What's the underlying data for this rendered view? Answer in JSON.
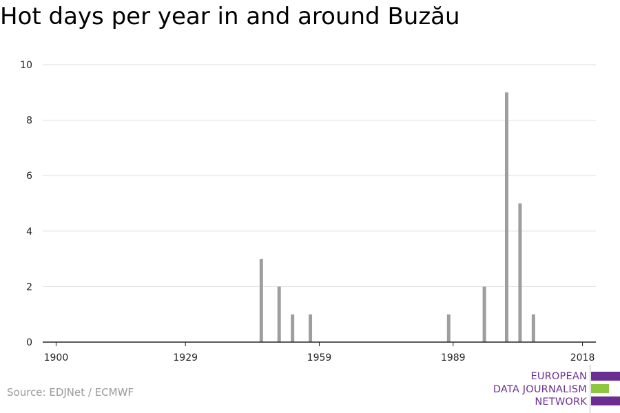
{
  "title": "Hot days per year in and around Buzău",
  "source": "Source: EDJNet / ECMWF",
  "logo": {
    "lines": [
      "EUROPEAN",
      "DATA JOURNALISM",
      "NETWORK"
    ],
    "colors": {
      "purple": "#6a2d91",
      "green": "#8dc63f"
    }
  },
  "chart_data": {
    "type": "bar",
    "title": "Hot days per year in and around Buzău",
    "xlabel": "",
    "ylabel": "",
    "xlim": [
      1897,
      2021
    ],
    "ylim": [
      0,
      10
    ],
    "x_ticks": [
      1900,
      1929,
      1959,
      1989,
      2018
    ],
    "y_ticks": [
      0,
      2,
      4,
      6,
      8,
      10
    ],
    "grid": true,
    "bar_color": "#9e9e9e",
    "series": [
      {
        "x": [
          1922,
          1923,
          1924,
          1925,
          1926,
          1927,
          1928,
          1929,
          1930,
          1931,
          1932,
          1933,
          1934,
          1935,
          1936,
          1937,
          1938,
          1939,
          1940,
          1941,
          1942,
          1943,
          1944,
          1945,
          1946,
          1947,
          1948,
          1949,
          1950,
          1951,
          1952,
          1953,
          1954,
          1955,
          1956,
          1957,
          1958,
          1959,
          1960,
          1961,
          1962,
          1963,
          1964,
          1965,
          1966,
          1967,
          1968,
          1969,
          1970,
          1971,
          1972,
          1973,
          1974,
          1975,
          1976,
          1977,
          1978,
          1979,
          1980,
          1981,
          1982,
          1983,
          1984,
          1985,
          1986,
          1987,
          1988,
          1989,
          1990,
          1991,
          1992,
          1993,
          1994,
          1995,
          1996,
          1997,
          1998,
          1999,
          2000,
          2001,
          2002,
          2003,
          2004,
          2005,
          2006,
          2007,
          2008,
          2009,
          2010,
          2011,
          2012,
          2013,
          2014,
          2015,
          2016,
          2017,
          2018
        ],
        "values": [
          0,
          0,
          0,
          0,
          0,
          0,
          0,
          0,
          0,
          0,
          0,
          0,
          0,
          0,
          0,
          0,
          0,
          0,
          0,
          0,
          0,
          0,
          0,
          0,
          3,
          0,
          0,
          0,
          2,
          0,
          0,
          1,
          0,
          0,
          0,
          1,
          0,
          0,
          0,
          0,
          0,
          0,
          0,
          0,
          0,
          0,
          0,
          0,
          0,
          0,
          0,
          0,
          0,
          0,
          0,
          0,
          0,
          0,
          0,
          0,
          0,
          0,
          0,
          0,
          0,
          0,
          1,
          0,
          0,
          0,
          0,
          0,
          0,
          0,
          2,
          0,
          0,
          0,
          0,
          9,
          0,
          0,
          5,
          0,
          0,
          1,
          0,
          0,
          0,
          0,
          0,
          0,
          0,
          0,
          0,
          0,
          0
        ]
      }
    ]
  }
}
